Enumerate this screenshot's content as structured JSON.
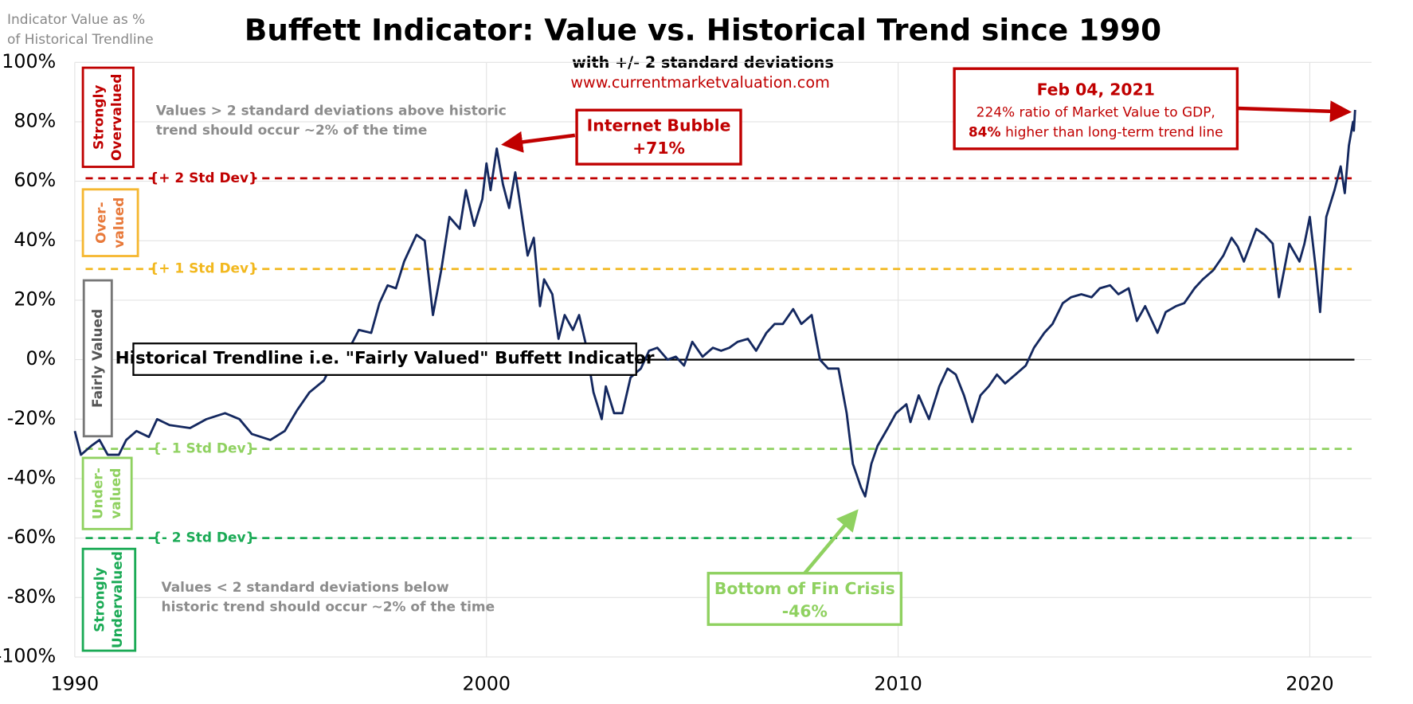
{
  "chart_data": {
    "type": "line",
    "title": "Buffett Indicator: Value vs. Historical Trend since 1990",
    "subtitle": "with +/- 2 standard deviations",
    "source": "www.currentmarketvaluation.com",
    "y_axis_label": [
      "Indicator Value as %",
      "of Historical Trendline"
    ],
    "color": "#14285f",
    "grid": true,
    "xlim": [
      1990,
      2021.5
    ],
    "xticks": [
      1990,
      2000,
      2010,
      2020
    ],
    "ylim": [
      -100,
      100
    ],
    "yticks": [
      {
        "value": -100,
        "label": "-100%"
      },
      {
        "value": -80,
        "label": "-80%"
      },
      {
        "value": -60,
        "label": "-60%"
      },
      {
        "value": -40,
        "label": "-40%"
      },
      {
        "value": -20,
        "label": "-20%"
      },
      {
        "value": 0,
        "label": "0%"
      },
      {
        "value": 20,
        "label": "20%"
      },
      {
        "value": 40,
        "label": "40%"
      },
      {
        "value": 60,
        "label": "60%"
      },
      {
        "value": 80,
        "label": "80%"
      },
      {
        "value": 100,
        "label": "100%"
      }
    ],
    "x": [
      1990.0,
      1990.15,
      1990.4,
      1990.6,
      1990.8,
      1991.07,
      1991.25,
      1991.5,
      1991.8,
      1992.0,
      1992.3,
      1992.8,
      1993.2,
      1993.65,
      1994.0,
      1994.3,
      1994.75,
      1995.1,
      1995.4,
      1995.7,
      1996.05,
      1996.3,
      1996.5,
      1996.75,
      1996.9,
      1997.2,
      1997.4,
      1997.6,
      1997.8,
      1998.0,
      1998.3,
      1998.5,
      1998.7,
      1998.9,
      1999.1,
      1999.35,
      1999.5,
      1999.7,
      1999.9,
      2000.0,
      2000.1,
      2000.25,
      2000.4,
      2000.55,
      2000.7,
      2000.8,
      2001.0,
      2001.15,
      2001.3,
      2001.4,
      2001.6,
      2001.75,
      2001.9,
      2002.1,
      2002.25,
      2002.4,
      2002.6,
      2002.8,
      2002.9,
      2003.1,
      2003.3,
      2003.5,
      2003.75,
      2003.95,
      2004.15,
      2004.4,
      2004.6,
      2004.8,
      2005.0,
      2005.25,
      2005.5,
      2005.7,
      2005.9,
      2006.1,
      2006.35,
      2006.55,
      2006.8,
      2007.0,
      2007.2,
      2007.45,
      2007.65,
      2007.9,
      2008.1,
      2008.3,
      2008.55,
      2008.75,
      2008.9,
      2009.1,
      2009.2,
      2009.35,
      2009.5,
      2009.75,
      2009.95,
      2010.2,
      2010.3,
      2010.5,
      2010.75,
      2011.0,
      2011.2,
      2011.4,
      2011.6,
      2011.8,
      2012.0,
      2012.2,
      2012.4,
      2012.6,
      2012.85,
      2013.1,
      2013.3,
      2013.55,
      2013.75,
      2014.0,
      2014.2,
      2014.45,
      2014.7,
      2014.9,
      2015.15,
      2015.35,
      2015.6,
      2015.8,
      2016.0,
      2016.3,
      2016.5,
      2016.75,
      2016.95,
      2017.2,
      2017.4,
      2017.65,
      2017.9,
      2018.1,
      2018.25,
      2018.4,
      2018.7,
      2018.9,
      2019.1,
      2019.25,
      2019.5,
      2019.75,
      2019.87,
      2020.0,
      2020.15,
      2020.25,
      2020.4,
      2020.6,
      2020.75,
      2020.85,
      2020.95,
      2021.05,
      2021.07,
      2021.1
    ],
    "values": [
      -24,
      -32,
      -29,
      -27,
      -32,
      -32,
      -27,
      -24,
      -26,
      -20,
      -22,
      -23,
      -20,
      -18,
      -20,
      -25,
      -27,
      -24,
      -17,
      -11,
      -7,
      0,
      -2,
      6,
      10,
      9,
      19,
      25,
      24,
      33,
      42,
      40,
      15,
      30,
      48,
      44,
      57,
      45,
      54,
      66,
      57,
      71,
      59,
      51,
      63,
      54,
      35,
      41,
      18,
      27,
      22,
      7,
      15,
      10,
      15,
      6,
      -11,
      -20,
      -9,
      -18,
      -18,
      -6,
      -3,
      3,
      4,
      0,
      1,
      -2,
      6,
      1,
      4,
      3,
      4,
      6,
      7,
      3,
      9,
      12,
      12,
      17,
      12,
      15,
      0,
      -3,
      -3,
      -18,
      -35,
      -43,
      -46,
      -35,
      -29,
      -23,
      -18,
      -15,
      -21,
      -12,
      -20,
      -9,
      -3,
      -5,
      -12,
      -21,
      -12,
      -9,
      -5,
      -8,
      -5,
      -2,
      4,
      9,
      12,
      19,
      21,
      22,
      21,
      24,
      25,
      22,
      24,
      13,
      18,
      9,
      16,
      18,
      19,
      24,
      27,
      30,
      35,
      41,
      38,
      33,
      44,
      42,
      39,
      21,
      39,
      33,
      39,
      48,
      30,
      16,
      48,
      57,
      65,
      56,
      72,
      80,
      77,
      84
    ],
    "reference_lines": [
      {
        "value": 61,
        "label": "{+ 2 Std Dev}",
        "color": "#c00000"
      },
      {
        "value": 30.5,
        "label": "{+ 1 Std Dev}",
        "color": "#f2b81e"
      },
      {
        "value": -30,
        "label": "{- 1 Std Dev}",
        "color": "#8fd160"
      },
      {
        "value": -60,
        "label": "{- 2 Std Dev}",
        "color": "#1aaa55"
      }
    ],
    "trendline": {
      "value": 0,
      "label": "Historical Trendline i.e. \"Fairly Valued\" Buffett Indicator"
    },
    "zones": [
      {
        "lines": [
          "Strongly",
          "Overvalued"
        ],
        "color": "#c00000"
      },
      {
        "lines": [
          "Over-",
          "valued"
        ],
        "color": "#e8793a"
      },
      {
        "lines": [
          "Fairly Valued"
        ],
        "color": "#555555"
      },
      {
        "lines": [
          "Under-",
          "valued"
        ],
        "color": "#8fd160"
      },
      {
        "lines": [
          "Strongly",
          "Undervalued"
        ],
        "color": "#1aaa55"
      }
    ],
    "notes": [
      [
        "Values > 2 standard deviations above historic",
        "trend should occur ~2% of the time"
      ],
      [
        "Values < 2 standard deviations below",
        "historic trend should occur ~2% of the time"
      ]
    ],
    "annotations": {
      "bubble": [
        "Internet Bubble",
        "+71%"
      ],
      "latest": {
        "date": "Feb 04, 2021",
        "line1": "224% ratio of Market Value to GDP,",
        "bold": "84%",
        "text": "higher than long-term trend line"
      },
      "crisis": [
        "Bottom of Fin Crisis",
        "-46%"
      ]
    }
  }
}
